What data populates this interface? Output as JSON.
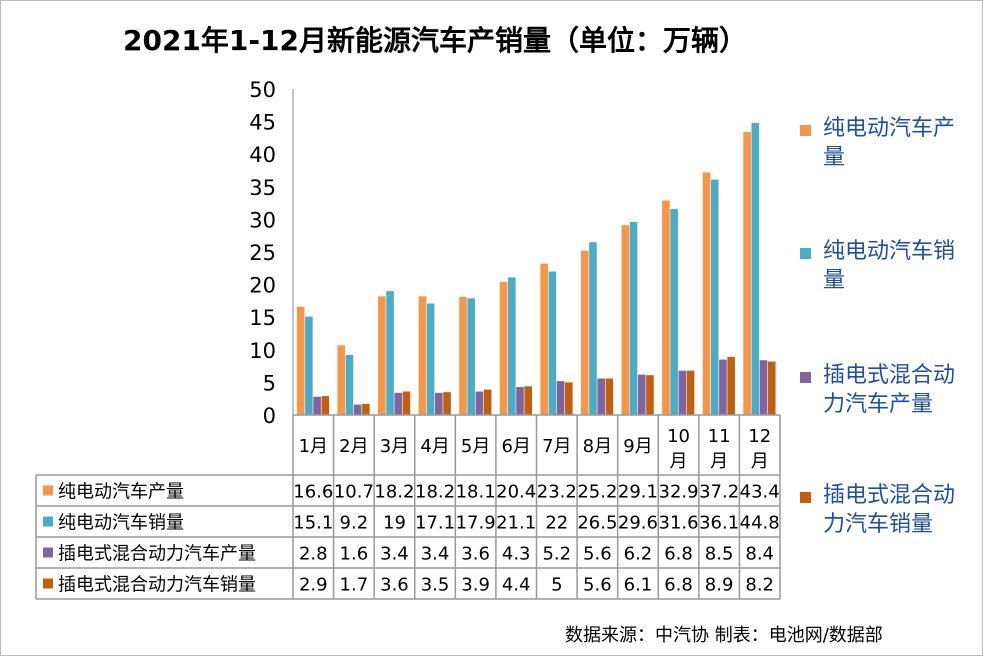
{
  "chart_data": {
    "type": "bar",
    "title": "2021年1-12月新能源汽车产销量（单位：万辆）",
    "categories": [
      "1月",
      "2月",
      "3月",
      "4月",
      "5月",
      "6月",
      "7月",
      "8月",
      "9月",
      "10月",
      "11月",
      "12月"
    ],
    "series": [
      {
        "name": "纯电动汽车产量",
        "color": "#F79646",
        "values": [
          16.6,
          10.7,
          18.2,
          18.2,
          18.1,
          20.4,
          23.2,
          25.2,
          29.1,
          32.9,
          37.2,
          43.4
        ]
      },
      {
        "name": "纯电动汽车销量",
        "color": "#4BACC6",
        "values": [
          15.1,
          9.2,
          19,
          17.1,
          17.9,
          21.1,
          22,
          26.5,
          29.6,
          31.6,
          36.1,
          44.8
        ]
      },
      {
        "name": "插电式混合动力汽车产量",
        "color": "#8064A2",
        "values": [
          2.8,
          1.6,
          3.4,
          3.4,
          3.6,
          4.3,
          5.2,
          5.6,
          6.2,
          6.8,
          8.5,
          8.4
        ]
      },
      {
        "name": "插电式混合动力汽车销量",
        "color": "#C0600F",
        "values": [
          2.9,
          1.7,
          3.6,
          3.5,
          3.9,
          4.4,
          5,
          5.6,
          6.1,
          6.8,
          8.9,
          8.2
        ]
      }
    ],
    "ylim": [
      0,
      50
    ],
    "yticks": [
      0,
      5,
      10,
      15,
      20,
      25,
      30,
      35,
      40,
      45,
      50
    ],
    "grid": false,
    "legend": "right",
    "data_table": true
  },
  "footer": "数据来源：中汽协  制表：电池网/数据部"
}
